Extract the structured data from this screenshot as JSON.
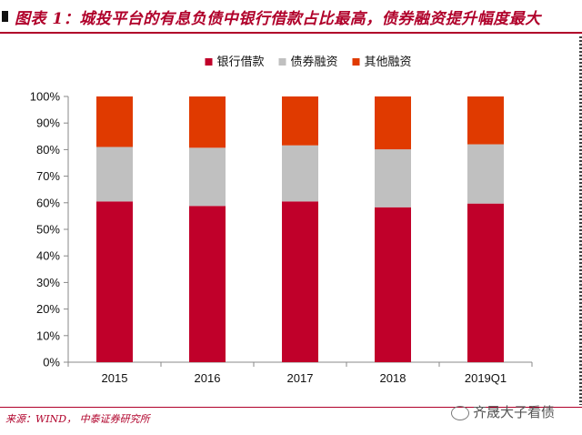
{
  "header": {
    "title": "图表 1：城投平台的有息负债中银行借款占比最高，债券融资提升幅度最大"
  },
  "footer": {
    "source": "来源：WIND， 中泰证券研究所",
    "watermark": "齐晟大子看债"
  },
  "colors": {
    "accent": "#b0002a",
    "series": [
      "#c0002a",
      "#c0c0c0",
      "#e03a00"
    ]
  },
  "chart_data": {
    "type": "bar",
    "stacked": true,
    "categories": [
      "2015",
      "2016",
      "2017",
      "2018",
      "2019Q1"
    ],
    "series": [
      {
        "name": "银行借款",
        "values": [
          60.5,
          58.8,
          60.5,
          58.3,
          59.7
        ]
      },
      {
        "name": "债券融资",
        "values": [
          20.5,
          21.9,
          21.1,
          21.8,
          22.3
        ]
      },
      {
        "name": "其他融资",
        "values": [
          19.0,
          19.3,
          18.4,
          19.9,
          18.0
        ]
      }
    ],
    "ylim": [
      0,
      100
    ],
    "yticks": [
      "0%",
      "10%",
      "20%",
      "30%",
      "40%",
      "50%",
      "60%",
      "70%",
      "80%",
      "90%",
      "100%"
    ],
    "grid": false,
    "legend": "top-center"
  }
}
